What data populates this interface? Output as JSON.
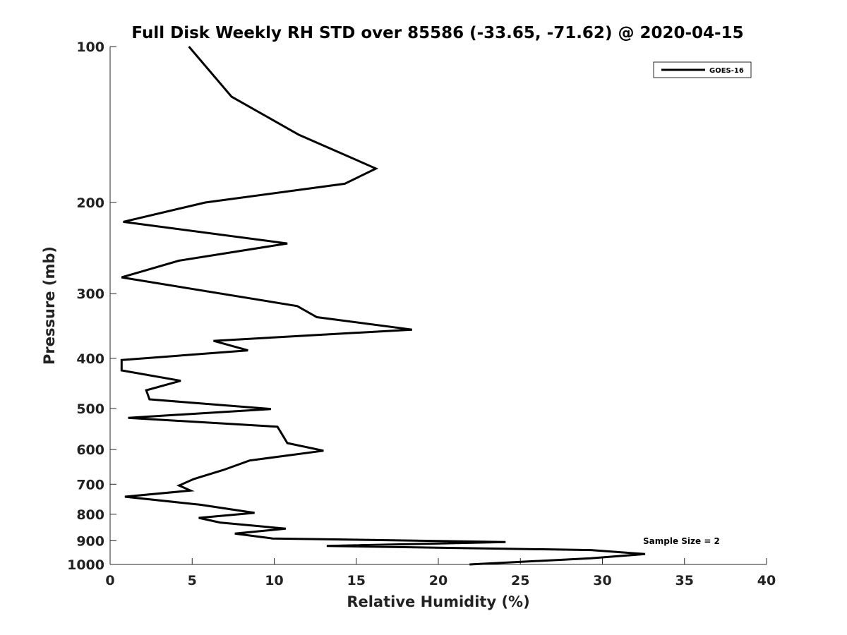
{
  "chart_data": {
    "type": "line",
    "title": "Full Disk Weekly RH STD over 85586 (-33.65, -71.62) @ 2020-04-15",
    "xlabel": "Relative Humidity (%)",
    "ylabel": "Pressure (mb)",
    "xlim": [
      0,
      40
    ],
    "ylim": [
      100,
      1000
    ],
    "y_scale": "log",
    "y_reversed": true,
    "x_ticks": [
      "0",
      "5",
      "10",
      "15",
      "20",
      "25",
      "30",
      "35",
      "40"
    ],
    "y_ticks": [
      "100",
      "200",
      "300",
      "400",
      "500",
      "600",
      "700",
      "800",
      "900",
      "1000"
    ],
    "grid": false,
    "legend_position": "top-right",
    "series": [
      {
        "name": "GOES-16",
        "color": "#000000",
        "x": [
          4.8,
          7.4,
          11.5,
          16.2,
          14.3,
          5.8,
          0.8,
          10.8,
          4.2,
          0.7,
          11.4,
          12.6,
          18.4,
          6.3,
          8.4,
          0.7,
          0.7,
          4.3,
          2.2,
          2.4,
          9.8,
          1.1,
          10.2,
          10.5,
          10.8,
          13.0,
          8.5,
          6.9,
          5.1,
          4.2,
          4.9,
          0.9,
          5.5,
          8.8,
          5.4,
          6.7,
          10.7,
          7.6,
          9.9,
          24.1,
          13.2,
          29.3,
          32.6,
          29.3,
          21.9
        ],
        "y": [
          100,
          125,
          148,
          172,
          184,
          200,
          218,
          240,
          259,
          279,
          317,
          333,
          352,
          370,
          386,
          403,
          422,
          442,
          461,
          480,
          501,
          521,
          542,
          562,
          583,
          603,
          630,
          657,
          684,
          704,
          720,
          740,
          767,
          795,
          813,
          830,
          853,
          872,
          891,
          905,
          921,
          938,
          955,
          973,
          1000
        ]
      }
    ],
    "annotations": [
      "Sample Size = 2"
    ]
  }
}
